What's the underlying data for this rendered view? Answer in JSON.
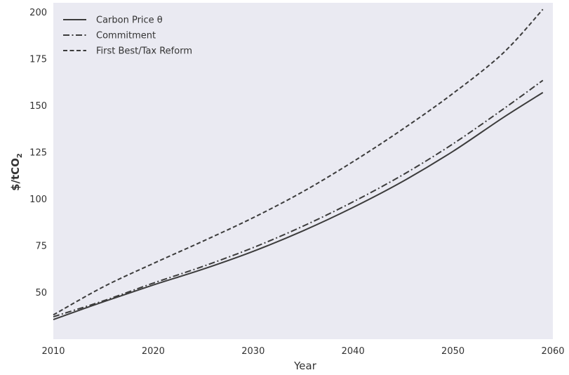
{
  "chart_data": {
    "type": "line",
    "xlabel": "Year",
    "ylabel_main": "$/tCO",
    "ylabel_sub": "2",
    "xlim": [
      2010,
      2060
    ],
    "ylim": [
      25,
      205
    ],
    "xticks": [
      2010,
      2020,
      2030,
      2040,
      2050,
      2060
    ],
    "yticks": [
      50,
      75,
      100,
      125,
      150,
      175,
      200
    ],
    "grid": false,
    "legend_position": "top-left",
    "background": "#eaeaf2",
    "x": [
      2010,
      2015,
      2020,
      2025,
      2030,
      2035,
      2040,
      2045,
      2050,
      2055,
      2059
    ],
    "series": [
      {
        "name": "Carbon Price θ",
        "dash": "solid",
        "color": "#3c3c3c",
        "values": [
          35.5,
          45,
          54,
          62.5,
          72,
          83,
          95.5,
          109.5,
          125.5,
          143.5,
          157
        ]
      },
      {
        "name": "Commitment",
        "dash": "dashdot",
        "color": "#3c3c3c",
        "values": [
          37,
          45.5,
          55,
          64,
          74,
          85.5,
          98.5,
          113,
          129.5,
          148,
          163.5
        ]
      },
      {
        "name": "First Best/Tax Reform",
        "dash": "dashed",
        "color": "#3c3c3c",
        "values": [
          38,
          53,
          65.5,
          77.5,
          90,
          104,
          120,
          137.5,
          156.5,
          178,
          201.5
        ]
      }
    ]
  }
}
